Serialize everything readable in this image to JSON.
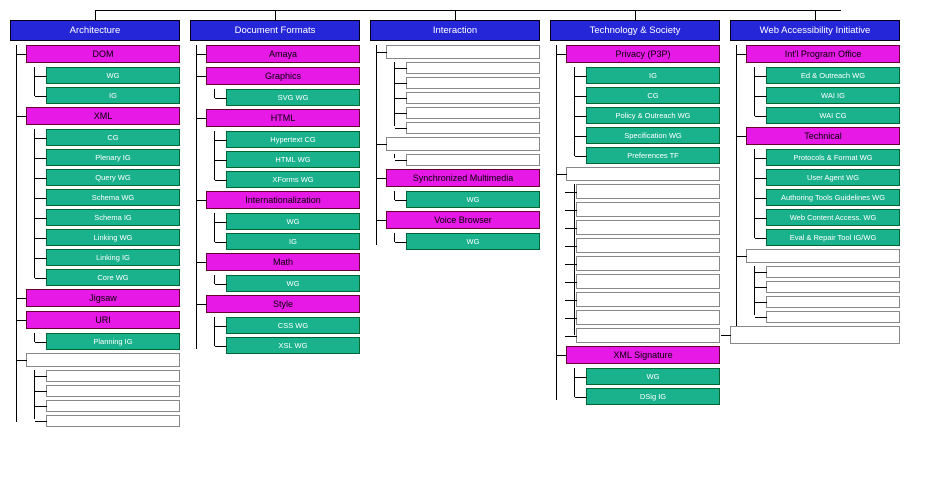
{
  "colors": {
    "header_bg": "#2626d9",
    "header_fg": "#ffffff",
    "sub_bg": "#e619e6",
    "sub_fg": "#000000",
    "leaf_bg": "#1ab28c",
    "leaf_fg": "#ffffff",
    "blank_border": "#888888",
    "line": "#000000",
    "page_bg": "#ffffff"
  },
  "columns": [
    {
      "title": "Architecture",
      "children": [
        {
          "label": "DOM",
          "type": "sub",
          "children": [
            {
              "label": "WG",
              "type": "leaf"
            },
            {
              "label": "IG",
              "type": "leaf"
            }
          ]
        },
        {
          "label": "XML",
          "type": "sub",
          "children": [
            {
              "label": "CG",
              "type": "leaf"
            },
            {
              "label": "Plenary IG",
              "type": "leaf"
            },
            {
              "label": "Query WG",
              "type": "leaf"
            },
            {
              "label": "Schema WG",
              "type": "leaf"
            },
            {
              "label": "Schema IG",
              "type": "leaf"
            },
            {
              "label": "Linking WG",
              "type": "leaf"
            },
            {
              "label": "Linking IG",
              "type": "leaf"
            },
            {
              "label": "Core WG",
              "type": "leaf"
            }
          ]
        },
        {
          "label": "Jigsaw",
          "type": "sub",
          "children": []
        },
        {
          "label": "URI",
          "type": "sub",
          "children": [
            {
              "label": "Planning IG",
              "type": "leaf"
            }
          ]
        },
        {
          "label": "",
          "type": "blank-sub",
          "children": [
            {
              "label": "",
              "type": "blank-leaf"
            },
            {
              "label": "",
              "type": "blank-leaf"
            },
            {
              "label": "",
              "type": "blank-leaf"
            },
            {
              "label": "",
              "type": "blank-leaf"
            }
          ]
        }
      ]
    },
    {
      "title": "Document Formats",
      "children": [
        {
          "label": "Amaya",
          "type": "sub",
          "children": []
        },
        {
          "label": "Graphics",
          "type": "sub",
          "children": [
            {
              "label": "SVG WG",
              "type": "leaf"
            }
          ]
        },
        {
          "label": "HTML",
          "type": "sub",
          "children": [
            {
              "label": "Hypertext CG",
              "type": "leaf"
            },
            {
              "label": "HTML WG",
              "type": "leaf"
            },
            {
              "label": "XForms WG",
              "type": "leaf"
            }
          ]
        },
        {
          "label": "Internationalization",
          "type": "sub",
          "children": [
            {
              "label": "WG",
              "type": "leaf"
            },
            {
              "label": "IG",
              "type": "leaf"
            }
          ]
        },
        {
          "label": "Math",
          "type": "sub",
          "children": [
            {
              "label": "WG",
              "type": "leaf"
            }
          ]
        },
        {
          "label": "Style",
          "type": "sub",
          "children": [
            {
              "label": "CSS WG",
              "type": "leaf"
            },
            {
              "label": "XSL WG",
              "type": "leaf"
            }
          ]
        }
      ]
    },
    {
      "title": "Interaction",
      "children": [
        {
          "label": "",
          "type": "blank-sub",
          "children": [
            {
              "label": "",
              "type": "blank-leaf"
            },
            {
              "label": "",
              "type": "blank-leaf"
            },
            {
              "label": "",
              "type": "blank-leaf"
            },
            {
              "label": "",
              "type": "blank-leaf"
            },
            {
              "label": "",
              "type": "blank-leaf"
            }
          ]
        },
        {
          "label": "",
          "type": "blank-sub",
          "children": [
            {
              "label": "",
              "type": "blank-leaf"
            }
          ]
        },
        {
          "label": "Synchronized Multimedia",
          "type": "sub",
          "children": [
            {
              "label": "WG",
              "type": "leaf"
            }
          ]
        },
        {
          "label": "Voice Browser",
          "type": "sub",
          "children": [
            {
              "label": "WG",
              "type": "leaf"
            }
          ]
        }
      ]
    },
    {
      "title": "Technology & Society",
      "children": [
        {
          "label": "Privacy (P3P)",
          "type": "sub",
          "children": [
            {
              "label": "IG",
              "type": "leaf"
            },
            {
              "label": "CG",
              "type": "leaf"
            },
            {
              "label": "Policy & Outreach WG",
              "type": "leaf"
            },
            {
              "label": "Specification WG",
              "type": "leaf"
            },
            {
              "label": "Preferences TF",
              "type": "leaf"
            }
          ]
        },
        {
          "label": "",
          "type": "blank-sub",
          "children": [
            {
              "label": "",
              "type": "blank-big"
            },
            {
              "label": "",
              "type": "blank-big"
            },
            {
              "label": "",
              "type": "blank-big"
            },
            {
              "label": "",
              "type": "blank-big"
            },
            {
              "label": "",
              "type": "blank-big"
            },
            {
              "label": "",
              "type": "blank-big"
            },
            {
              "label": "",
              "type": "blank-big"
            },
            {
              "label": "",
              "type": "blank-big"
            },
            {
              "label": "",
              "type": "blank-big"
            }
          ]
        },
        {
          "label": "XML Signature",
          "type": "sub",
          "children": [
            {
              "label": "WG",
              "type": "leaf"
            },
            {
              "label": "DSig IG",
              "type": "leaf"
            }
          ]
        }
      ]
    },
    {
      "title": "Web Accessibility Initiative",
      "children": [
        {
          "label": "Int'l Program Office",
          "type": "sub",
          "children": [
            {
              "label": "Ed & Outreach WG",
              "type": "leaf"
            },
            {
              "label": "WAI IG",
              "type": "leaf"
            },
            {
              "label": "WAI CG",
              "type": "leaf"
            }
          ]
        },
        {
          "label": "Technical",
          "type": "sub",
          "children": [
            {
              "label": "Protocols & Format WG",
              "type": "leaf"
            },
            {
              "label": "User Agent WG",
              "type": "leaf"
            },
            {
              "label": "Authoring Tools Guidelines WG",
              "type": "leaf"
            },
            {
              "label": "Web Content Access. WG",
              "type": "leaf"
            },
            {
              "label": "Eval & Repair Tool IG/WG",
              "type": "leaf"
            }
          ]
        },
        {
          "label": "",
          "type": "blank-sub",
          "children": [
            {
              "label": "",
              "type": "blank-leaf"
            },
            {
              "label": "",
              "type": "blank-leaf"
            },
            {
              "label": "",
              "type": "blank-leaf"
            },
            {
              "label": "",
              "type": "blank-leaf"
            }
          ]
        },
        {
          "label": " ",
          "type": "blank-sub-wide",
          "children": []
        }
      ]
    }
  ]
}
